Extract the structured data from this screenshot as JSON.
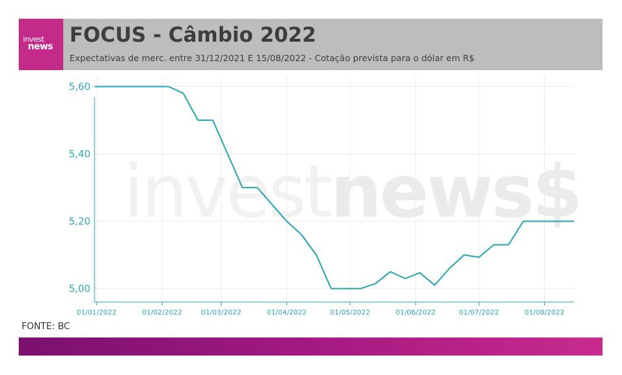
{
  "header": {
    "logo_line1": "invest",
    "logo_line2": "news",
    "title": "FOCUS - Câmbio 2022",
    "subtitle": "Expectativas de merc. entre 31/12/2021 E 15/08/2022 - Cotação prevista para o dólar em R$"
  },
  "watermark": {
    "light": "invest",
    "bold": "news$"
  },
  "source": "FONTE: BC",
  "colors": {
    "line": "#2ba7b0",
    "header_bg": "#bdbdbd",
    "logo_bg": "#c32a8a",
    "footer_start": "#7a1070",
    "footer_end": "#c82b8d"
  },
  "chart_data": {
    "type": "line",
    "x_tick_labels": [
      "01/01/2022",
      "01/02/2022",
      "01/03/2022",
      "01/04/2022",
      "01/05/2022",
      "01/06/2022",
      "01/07/2022",
      "01/08/2022"
    ],
    "y_tick_labels": [
      "5,00",
      "5,20",
      "5,40",
      "5,60"
    ],
    "y_ticks": [
      5.0,
      5.2,
      5.4,
      5.6
    ],
    "xlim": [
      "2021-12-31",
      "2022-08-15"
    ],
    "ylim": [
      4.96,
      5.63
    ],
    "grid": true,
    "series": [
      {
        "x": [
          "2021-12-31",
          "2022-01-07",
          "2022-01-14",
          "2022-01-21",
          "2022-01-28",
          "2022-02-04",
          "2022-02-11",
          "2022-02-18",
          "2022-02-25",
          "2022-03-04",
          "2022-03-11",
          "2022-03-18",
          "2022-03-25",
          "2022-04-01",
          "2022-04-08",
          "2022-04-15",
          "2022-04-22",
          "2022-04-29",
          "2022-05-06",
          "2022-05-13",
          "2022-05-20",
          "2022-05-27",
          "2022-06-03",
          "2022-06-10",
          "2022-06-17",
          "2022-06-24",
          "2022-07-01",
          "2022-07-08",
          "2022-07-15",
          "2022-07-22",
          "2022-07-29",
          "2022-08-05",
          "2022-08-15"
        ],
        "values": [
          5.6,
          5.6,
          5.6,
          5.6,
          5.6,
          5.6,
          5.58,
          5.5,
          5.5,
          5.4,
          5.3,
          5.3,
          5.25,
          5.2,
          5.16,
          5.1,
          5.0,
          5.0,
          5.0,
          5.015,
          5.05,
          5.03,
          5.047,
          5.01,
          5.06,
          5.1,
          5.093,
          5.13,
          5.13,
          5.2,
          5.2,
          5.2,
          5.2
        ]
      }
    ]
  }
}
